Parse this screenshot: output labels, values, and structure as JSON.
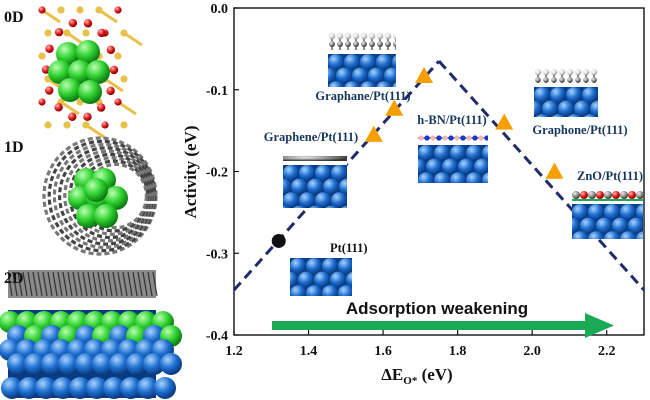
{
  "panels": {
    "zero_d": "0D",
    "one_d": "1D",
    "two_d": "2D"
  },
  "colors": {
    "guide_line": "#1f2a6b",
    "triangle": "#f5a000",
    "circle": "#111111",
    "arrow": "#1aaa55",
    "label_blue": "#17365d",
    "metal_blue": "#1e6fd0",
    "sphere_green": "#35d435"
  },
  "banner": {
    "text": "Adsorption weakening"
  },
  "chart_data": {
    "type": "scatter",
    "xlabel_main": "ΔE",
    "xlabel_sub": "O*",
    "xlabel_unit": " (eV)",
    "ylabel": "Activity (eV)",
    "xlim": [
      1.2,
      2.3
    ],
    "ylim": [
      -0.4,
      0.0
    ],
    "x_ticks": [
      "1.2",
      "1.4",
      "1.6",
      "1.8",
      "2.0",
      "2.2"
    ],
    "y_ticks": [
      "0.0",
      "-0.1",
      "-0.2",
      "-0.3",
      "-0.4"
    ],
    "volcano": {
      "left": [
        [
          1.2,
          -0.345
        ],
        [
          1.75,
          -0.065
        ]
      ],
      "right": [
        [
          1.75,
          -0.065
        ],
        [
          2.3,
          -0.345
        ]
      ]
    },
    "points": [
      {
        "name": "Pt(111)",
        "x": 1.32,
        "y": -0.285,
        "marker": "circle"
      },
      {
        "name": "Graphene/Pt(111)",
        "x": 1.575,
        "y": -0.155,
        "marker": "triangle"
      },
      {
        "name": "h-BN/Pt(111)",
        "x": 1.63,
        "y": -0.123,
        "marker": "triangle"
      },
      {
        "name": "Graphane/Pt(111)",
        "x": 1.71,
        "y": -0.083,
        "marker": "triangle"
      },
      {
        "name": "Graphone/Pt(111)",
        "x": 1.925,
        "y": -0.14,
        "marker": "triangle"
      },
      {
        "name": "ZnO/Pt(111)",
        "x": 2.06,
        "y": -0.2,
        "marker": "triangle"
      }
    ]
  }
}
